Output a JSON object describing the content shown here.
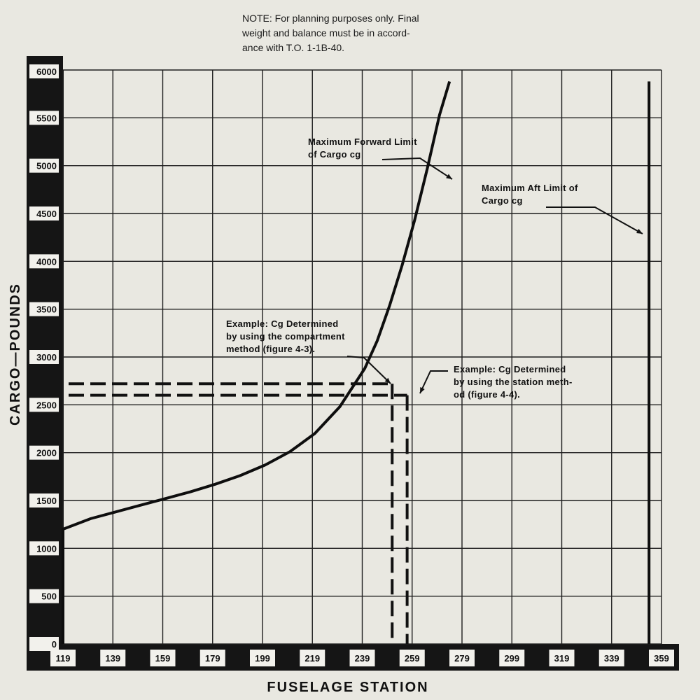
{
  "note": "NOTE: For planning purposes only. Final\nweight and balance must be in accord-\nance with T.O. 1-1B-40.",
  "chart_data": {
    "type": "line",
    "title": "",
    "xlabel": "FUSELAGE STATION",
    "ylabel": "CARGO—POUNDS",
    "xlim": [
      119,
      359
    ],
    "ylim": [
      0,
      6000
    ],
    "x_ticks": [
      "119",
      "139",
      "159",
      "179",
      "199",
      "219",
      "239",
      "259",
      "279",
      "299",
      "319",
      "339",
      "359"
    ],
    "y_ticks": [
      "0",
      "500",
      "1000",
      "1500",
      "2000",
      "2500",
      "3000",
      "3500",
      "4000",
      "4500",
      "5000",
      "5500",
      "6000"
    ],
    "grid": true,
    "series": [
      {
        "name": "Maximum Forward Limit of Cargo cg",
        "x": [
          119,
          119,
          130,
          140,
          150,
          160,
          170,
          180,
          190,
          200,
          210,
          220,
          230,
          240,
          245,
          250,
          255,
          260,
          265,
          270,
          274
        ],
        "y": [
          0,
          1200,
          1310,
          1380,
          1450,
          1520,
          1590,
          1670,
          1760,
          1870,
          2010,
          2200,
          2480,
          2880,
          3170,
          3540,
          3960,
          4430,
          4960,
          5530,
          5880
        ]
      },
      {
        "name": "Maximum Aft Limit of Cargo cg",
        "x": [
          354,
          354
        ],
        "y": [
          0,
          5880
        ]
      }
    ],
    "annotations": [
      {
        "lines": [
          "Maximum Forward Limit",
          "of Cargo cg"
        ]
      },
      {
        "lines": [
          "Maximum Aft Limit of",
          "Cargo cg"
        ]
      },
      {
        "lines": [
          "Example:  Cg Determined",
          "by using the compartment",
          "method (figure 4-3)."
        ],
        "x": 251,
        "y": 2720
      },
      {
        "lines": [
          "Example:  Cg Determined",
          "by using the station meth-",
          "od (figure 4-4)."
        ],
        "x": 257,
        "y": 2600
      }
    ]
  }
}
